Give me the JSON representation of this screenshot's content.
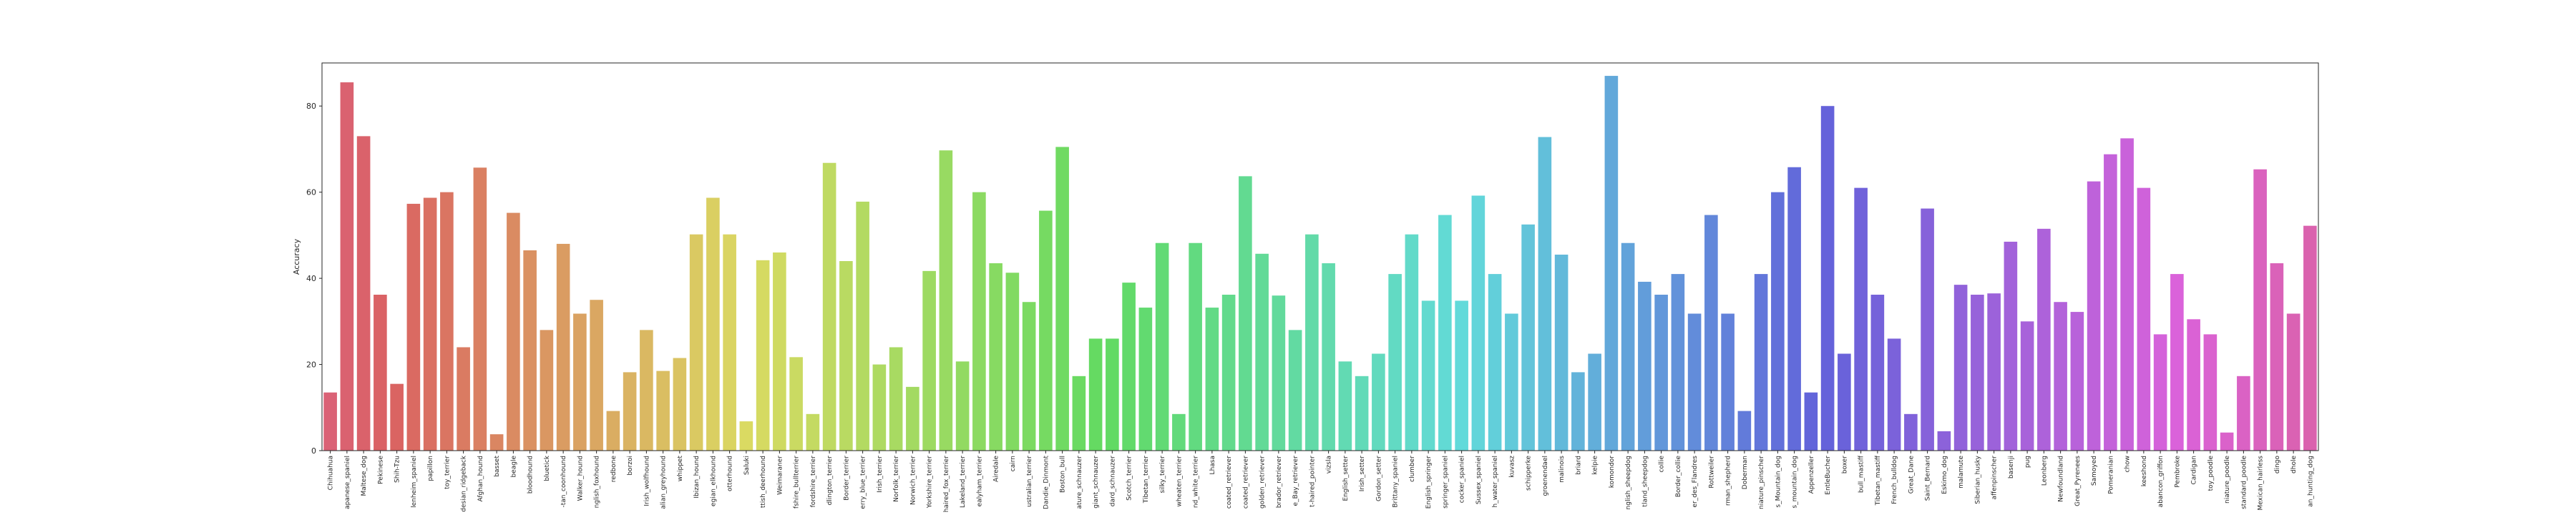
{
  "chart_data": {
    "type": "bar",
    "title": "",
    "xlabel": "",
    "ylabel": "Accuracy",
    "ylim": [
      0,
      90
    ],
    "yticks": [
      0,
      20,
      40,
      60,
      80
    ],
    "grid": false,
    "legend": "none",
    "palette": "husl",
    "categories": [
      "Chihuahua",
      "apanese_spaniel",
      "Maltese_dog",
      "Pekinese",
      "Shih-Tzu",
      "lenheim_spaniel",
      "papillon",
      "toy_terrier",
      "desian_ridgeback",
      "Afghan_hound",
      "basset",
      "beagle",
      "bloodhound",
      "bluetick",
      "-tan_coonhound",
      "Walker_hound",
      "nglish_foxhound",
      "redbone",
      "borzoi",
      "Irish_wolfhound",
      "alian_greyhound",
      "whippet",
      "Ibizan_hound",
      "egian_elkhound",
      "otterhound",
      "Saluki",
      "ttish_deerhound",
      "Weimaraner",
      "fshire_bullterrier",
      "fordshire_terrier",
      "dlington_terrier",
      "Border_terrier",
      "erry_blue_terrier",
      "Irish_terrier",
      "Norfolk_terrier",
      "Norwich_terrier",
      "Yorkshire_terrier",
      "haired_fox_terrier",
      "Lakeland_terrier",
      "ealyham_terrier",
      "Airedale",
      "cairn",
      "ustralian_terrier",
      "Dandie_Dinmont",
      "Boston_bull",
      "ature_schnauzer",
      "giant_schnauzer",
      "dard_schnauzer",
      "Scotch_terrier",
      "Tibetan_terrier",
      "silky_terrier",
      "wheaten_terrier",
      "nd_white_terrier",
      "Lhasa",
      "coated_retriever",
      "coated_retriever",
      "golden_retriever",
      "brador_retriever",
      "e_Bay_retriever",
      "t-haired_pointer",
      "vizsla",
      "English_setter",
      "Irish_setter",
      "Gordon_setter",
      "Brittany_spaniel",
      "clumber",
      "English_springer",
      "springer_spaniel",
      "cocker_spaniel",
      "Sussex_spaniel",
      "h_water_spaniel",
      "kuvasz",
      "schipperke",
      "groenendael",
      "malinois",
      "briard",
      "kelpie",
      "komondor",
      "nglish_sheepdog",
      "tland_sheepdog",
      "collie",
      "Border_collie",
      "er_des_Flandres",
      "Rottweiler",
      "rman_shepherd",
      "Doberman",
      "niature_pinscher",
      "s_Mountain_dog",
      "s_mountain_dog",
      "Appenzeller",
      "EntleBucher",
      "boxer",
      "bull_mastiff",
      "Tibetan_mastiff",
      "French_bulldog",
      "Great_Dane",
      "Saint_Bernard",
      "Eskimo_dog",
      "malamute",
      "Siberian_husky",
      "affenpinscher",
      "basenji",
      "pug",
      "Leonberg",
      "Newfoundland",
      "Great_Pyrenees",
      "Samoyed",
      "Pomeranian",
      "chow",
      "keeshond",
      "abancon_griffon",
      "Pembroke",
      "Cardigan",
      "toy_poodle",
      "niature_poodle",
      "standard_poodle",
      "Mexican_hairless",
      "dingo",
      "dhole",
      "an_hunting_dog"
    ],
    "values": [
      13.5,
      85.5,
      73.0,
      36.2,
      15.5,
      57.3,
      58.7,
      60.0,
      24.0,
      65.7,
      3.8,
      55.2,
      46.5,
      28.0,
      48.0,
      31.8,
      35.0,
      9.2,
      18.2,
      28.0,
      18.5,
      21.5,
      50.2,
      58.7,
      50.2,
      6.8,
      44.2,
      46.0,
      21.7,
      8.5,
      66.8,
      44.0,
      57.8,
      20.0,
      24.0,
      14.8,
      41.7,
      69.7,
      20.7,
      60.0,
      43.5,
      41.3,
      34.5,
      55.7,
      70.5,
      17.3,
      26.0,
      26.0,
      39.0,
      33.2,
      48.2,
      8.5,
      48.2,
      33.2,
      36.2,
      63.7,
      45.7,
      36.0,
      28.0,
      50.2,
      43.5,
      20.7,
      17.3,
      22.5,
      41.0,
      50.2,
      34.8,
      54.7,
      34.8,
      59.2,
      41.0,
      31.8,
      52.5,
      72.8,
      45.5,
      18.2,
      22.5,
      87.0,
      48.2,
      39.2,
      36.2,
      41.0,
      31.8,
      54.7,
      31.8,
      9.2,
      41.0,
      60.0,
      65.8,
      13.5,
      80.0,
      22.5,
      61.0,
      36.2,
      26.0,
      8.5,
      56.2,
      4.5,
      38.5,
      36.2,
      36.5,
      48.5,
      30.0,
      51.5,
      34.5,
      32.2,
      62.5,
      68.8,
      72.5,
      61.0,
      27.0,
      41.0,
      30.5,
      27.0,
      4.2,
      17.3,
      65.3,
      43.5,
      31.8,
      52.2
    ]
  }
}
